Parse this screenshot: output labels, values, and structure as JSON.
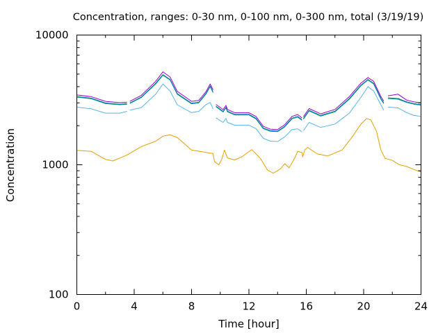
{
  "chart_data": {
    "type": "line",
    "title": "Concentration, ranges: 0-30 nm, 0-100 nm, 0-300 nm, total (3/19/19)",
    "xlabel": "Time [hour]",
    "ylabel": "Concentration",
    "xlim": [
      0,
      24
    ],
    "ylim": [
      100,
      10000
    ],
    "y_scale": "log",
    "x_ticks": [
      0,
      4,
      8,
      12,
      16,
      20,
      24
    ],
    "y_ticks": [
      100,
      1000,
      10000
    ],
    "grid": false,
    "legend": "none",
    "series": [
      {
        "color": "#e69f00",
        "points": [
          [
            0,
            1290
          ],
          [
            1,
            1270
          ],
          [
            2,
            1100
          ],
          [
            2.5,
            1070
          ],
          [
            3.5,
            1190
          ],
          [
            4.5,
            1380
          ],
          [
            5.5,
            1520
          ],
          [
            6,
            1660
          ],
          [
            6.5,
            1700
          ],
          [
            7,
            1620
          ],
          [
            8,
            1300
          ],
          [
            9.5,
            1220
          ],
          [
            9.6,
            1060
          ],
          [
            9.9,
            1000
          ],
          [
            10.1,
            1100
          ],
          [
            10.3,
            1300
          ],
          [
            10.5,
            1130
          ],
          [
            11,
            1090
          ],
          [
            11.5,
            1150
          ],
          [
            12.2,
            1310
          ],
          [
            12.8,
            1120
          ],
          [
            13.3,
            910
          ],
          [
            13.7,
            860
          ],
          [
            14.2,
            930
          ],
          [
            14.5,
            1020
          ],
          [
            14.8,
            950
          ],
          [
            15.2,
            1130
          ],
          [
            15.4,
            1270
          ],
          [
            15.7,
            1240
          ],
          [
            15.75,
            1150
          ],
          [
            15.9,
            1310
          ],
          [
            16.1,
            1360
          ],
          [
            16.4,
            1290
          ],
          [
            16.8,
            1210
          ],
          [
            17.5,
            1170
          ],
          [
            18.5,
            1300
          ],
          [
            19.2,
            1640
          ],
          [
            19.8,
            2050
          ],
          [
            20.2,
            2270
          ],
          [
            20.5,
            2220
          ],
          [
            20.9,
            1800
          ],
          [
            21.2,
            1300
          ],
          [
            21.5,
            1120
          ],
          [
            22,
            1080
          ],
          [
            22.5,
            1000
          ],
          [
            23,
            970
          ],
          [
            23.5,
            920
          ],
          [
            24,
            880
          ]
        ]
      },
      {
        "color": "#56b4e9",
        "points": [
          [
            0,
            2780
          ],
          [
            1,
            2700
          ],
          [
            2,
            2500
          ],
          [
            3,
            2500
          ],
          [
            3.5,
            2580
          ],
          [
            3.6,
            null
          ],
          [
            3.7,
            2640
          ],
          [
            4.5,
            2760
          ],
          [
            5.5,
            3500
          ],
          [
            6,
            4200
          ],
          [
            6.5,
            3700
          ],
          [
            7,
            2900
          ],
          [
            8,
            2520
          ],
          [
            8.5,
            2580
          ],
          [
            9,
            2900
          ],
          [
            9.3,
            3020
          ],
          [
            9.5,
            2700
          ],
          [
            9.6,
            null
          ],
          [
            9.7,
            2300
          ],
          [
            10.2,
            2120
          ],
          [
            10.4,
            2280
          ],
          [
            10.5,
            2120
          ],
          [
            11,
            2020
          ],
          [
            12,
            2020
          ],
          [
            12.5,
            1900
          ],
          [
            13,
            1600
          ],
          [
            13.5,
            1520
          ],
          [
            14,
            1510
          ],
          [
            14.5,
            1640
          ],
          [
            15,
            1870
          ],
          [
            15.4,
            1890
          ],
          [
            15.7,
            1800
          ],
          [
            15.75,
            null
          ],
          [
            15.8,
            1830
          ],
          [
            16.2,
            2120
          ],
          [
            17,
            1940
          ],
          [
            18,
            2060
          ],
          [
            19,
            2500
          ],
          [
            19.8,
            3300
          ],
          [
            20.3,
            4000
          ],
          [
            20.7,
            3700
          ],
          [
            21.2,
            2900
          ],
          [
            21.4,
            2630
          ],
          [
            21.6,
            null
          ],
          [
            21.7,
            2790
          ],
          [
            22.4,
            2740
          ],
          [
            23,
            2520
          ],
          [
            23.5,
            2400
          ],
          [
            24,
            2360
          ]
        ]
      },
      {
        "color": "#009e73",
        "points": [
          [
            0,
            3320
          ],
          [
            1,
            3230
          ],
          [
            2,
            2960
          ],
          [
            3,
            2900
          ],
          [
            3.5,
            2930
          ],
          [
            3.6,
            null
          ],
          [
            3.7,
            2970
          ],
          [
            4.5,
            3300
          ],
          [
            5.5,
            4200
          ],
          [
            6,
            4900
          ],
          [
            6.5,
            4500
          ],
          [
            7,
            3500
          ],
          [
            8,
            2950
          ],
          [
            8.5,
            3000
          ],
          [
            9,
            3500
          ],
          [
            9.3,
            4000
          ],
          [
            9.5,
            3600
          ],
          [
            9.6,
            null
          ],
          [
            9.7,
            2800
          ],
          [
            10.2,
            2550
          ],
          [
            10.4,
            2750
          ],
          [
            10.5,
            2560
          ],
          [
            11,
            2420
          ],
          [
            12,
            2420
          ],
          [
            12.5,
            2250
          ],
          [
            13,
            1900
          ],
          [
            13.5,
            1810
          ],
          [
            14,
            1800
          ],
          [
            14.5,
            1960
          ],
          [
            15,
            2260
          ],
          [
            15.4,
            2330
          ],
          [
            15.7,
            2200
          ],
          [
            15.75,
            null
          ],
          [
            15.8,
            2250
          ],
          [
            16.2,
            2600
          ],
          [
            17,
            2370
          ],
          [
            18,
            2560
          ],
          [
            19,
            3200
          ],
          [
            19.8,
            4050
          ],
          [
            20.3,
            4500
          ],
          [
            20.7,
            4200
          ],
          [
            21.2,
            3200
          ],
          [
            21.4,
            2960
          ],
          [
            21.6,
            null
          ],
          [
            21.7,
            3240
          ],
          [
            22.4,
            3200
          ],
          [
            23,
            3020
          ],
          [
            23.5,
            2930
          ],
          [
            24,
            2880
          ]
        ]
      },
      {
        "color": "#0072b2",
        "points": [
          [
            0,
            3350
          ],
          [
            1,
            3260
          ],
          [
            2,
            2990
          ],
          [
            3,
            2930
          ],
          [
            3.5,
            2960
          ],
          [
            3.6,
            null
          ],
          [
            3.7,
            3000
          ],
          [
            4.5,
            3330
          ],
          [
            5.5,
            4250
          ],
          [
            6,
            4950
          ],
          [
            6.5,
            4550
          ],
          [
            7,
            3540
          ],
          [
            8,
            2980
          ],
          [
            8.5,
            3030
          ],
          [
            9,
            3540
          ],
          [
            9.3,
            4050
          ],
          [
            9.5,
            3640
          ],
          [
            9.6,
            null
          ],
          [
            9.7,
            2830
          ],
          [
            10.2,
            2580
          ],
          [
            10.4,
            2780
          ],
          [
            10.5,
            2590
          ],
          [
            11,
            2450
          ],
          [
            12,
            2450
          ],
          [
            12.5,
            2280
          ],
          [
            13,
            1920
          ],
          [
            13.5,
            1830
          ],
          [
            14,
            1820
          ],
          [
            14.5,
            1980
          ],
          [
            15,
            2290
          ],
          [
            15.4,
            2360
          ],
          [
            15.7,
            2230
          ],
          [
            15.75,
            null
          ],
          [
            15.8,
            2280
          ],
          [
            16.2,
            2630
          ],
          [
            17,
            2400
          ],
          [
            18,
            2590
          ],
          [
            19,
            3240
          ],
          [
            19.8,
            4100
          ],
          [
            20.3,
            4550
          ],
          [
            20.7,
            4250
          ],
          [
            21.2,
            3240
          ],
          [
            21.4,
            3000
          ],
          [
            21.6,
            null
          ],
          [
            21.7,
            3280
          ],
          [
            22.4,
            3240
          ],
          [
            23,
            3050
          ],
          [
            23.5,
            2960
          ],
          [
            24,
            2910
          ]
        ]
      },
      {
        "color": "#9400d3",
        "points": [
          [
            0,
            3450
          ],
          [
            1,
            3350
          ],
          [
            2,
            3080
          ],
          [
            3,
            3010
          ],
          [
            3.5,
            3040
          ],
          [
            3.6,
            null
          ],
          [
            3.7,
            3080
          ],
          [
            4.5,
            3430
          ],
          [
            5.5,
            4400
          ],
          [
            6,
            5200
          ],
          [
            6.5,
            4750
          ],
          [
            7,
            3680
          ],
          [
            8,
            3080
          ],
          [
            8.5,
            3130
          ],
          [
            9,
            3650
          ],
          [
            9.3,
            4200
          ],
          [
            9.5,
            3780
          ],
          [
            9.6,
            null
          ],
          [
            9.7,
            2920
          ],
          [
            10.2,
            2660
          ],
          [
            10.4,
            2870
          ],
          [
            10.5,
            2670
          ],
          [
            11,
            2520
          ],
          [
            12,
            2520
          ],
          [
            12.5,
            2350
          ],
          [
            13,
            1980
          ],
          [
            13.5,
            1880
          ],
          [
            14,
            1870
          ],
          [
            14.5,
            2040
          ],
          [
            15,
            2360
          ],
          [
            15.4,
            2440
          ],
          [
            15.7,
            2300
          ],
          [
            15.75,
            null
          ],
          [
            15.8,
            2350
          ],
          [
            16.2,
            2710
          ],
          [
            17,
            2470
          ],
          [
            18,
            2670
          ],
          [
            19,
            3350
          ],
          [
            19.8,
            4250
          ],
          [
            20.3,
            4700
          ],
          [
            20.7,
            4400
          ],
          [
            21.2,
            3350
          ],
          [
            21.4,
            3100
          ],
          [
            21.6,
            null
          ],
          [
            21.7,
            3400
          ],
          [
            22.4,
            3500
          ],
          [
            23,
            3150
          ],
          [
            23.5,
            3050
          ],
          [
            24,
            3000
          ]
        ]
      }
    ]
  }
}
